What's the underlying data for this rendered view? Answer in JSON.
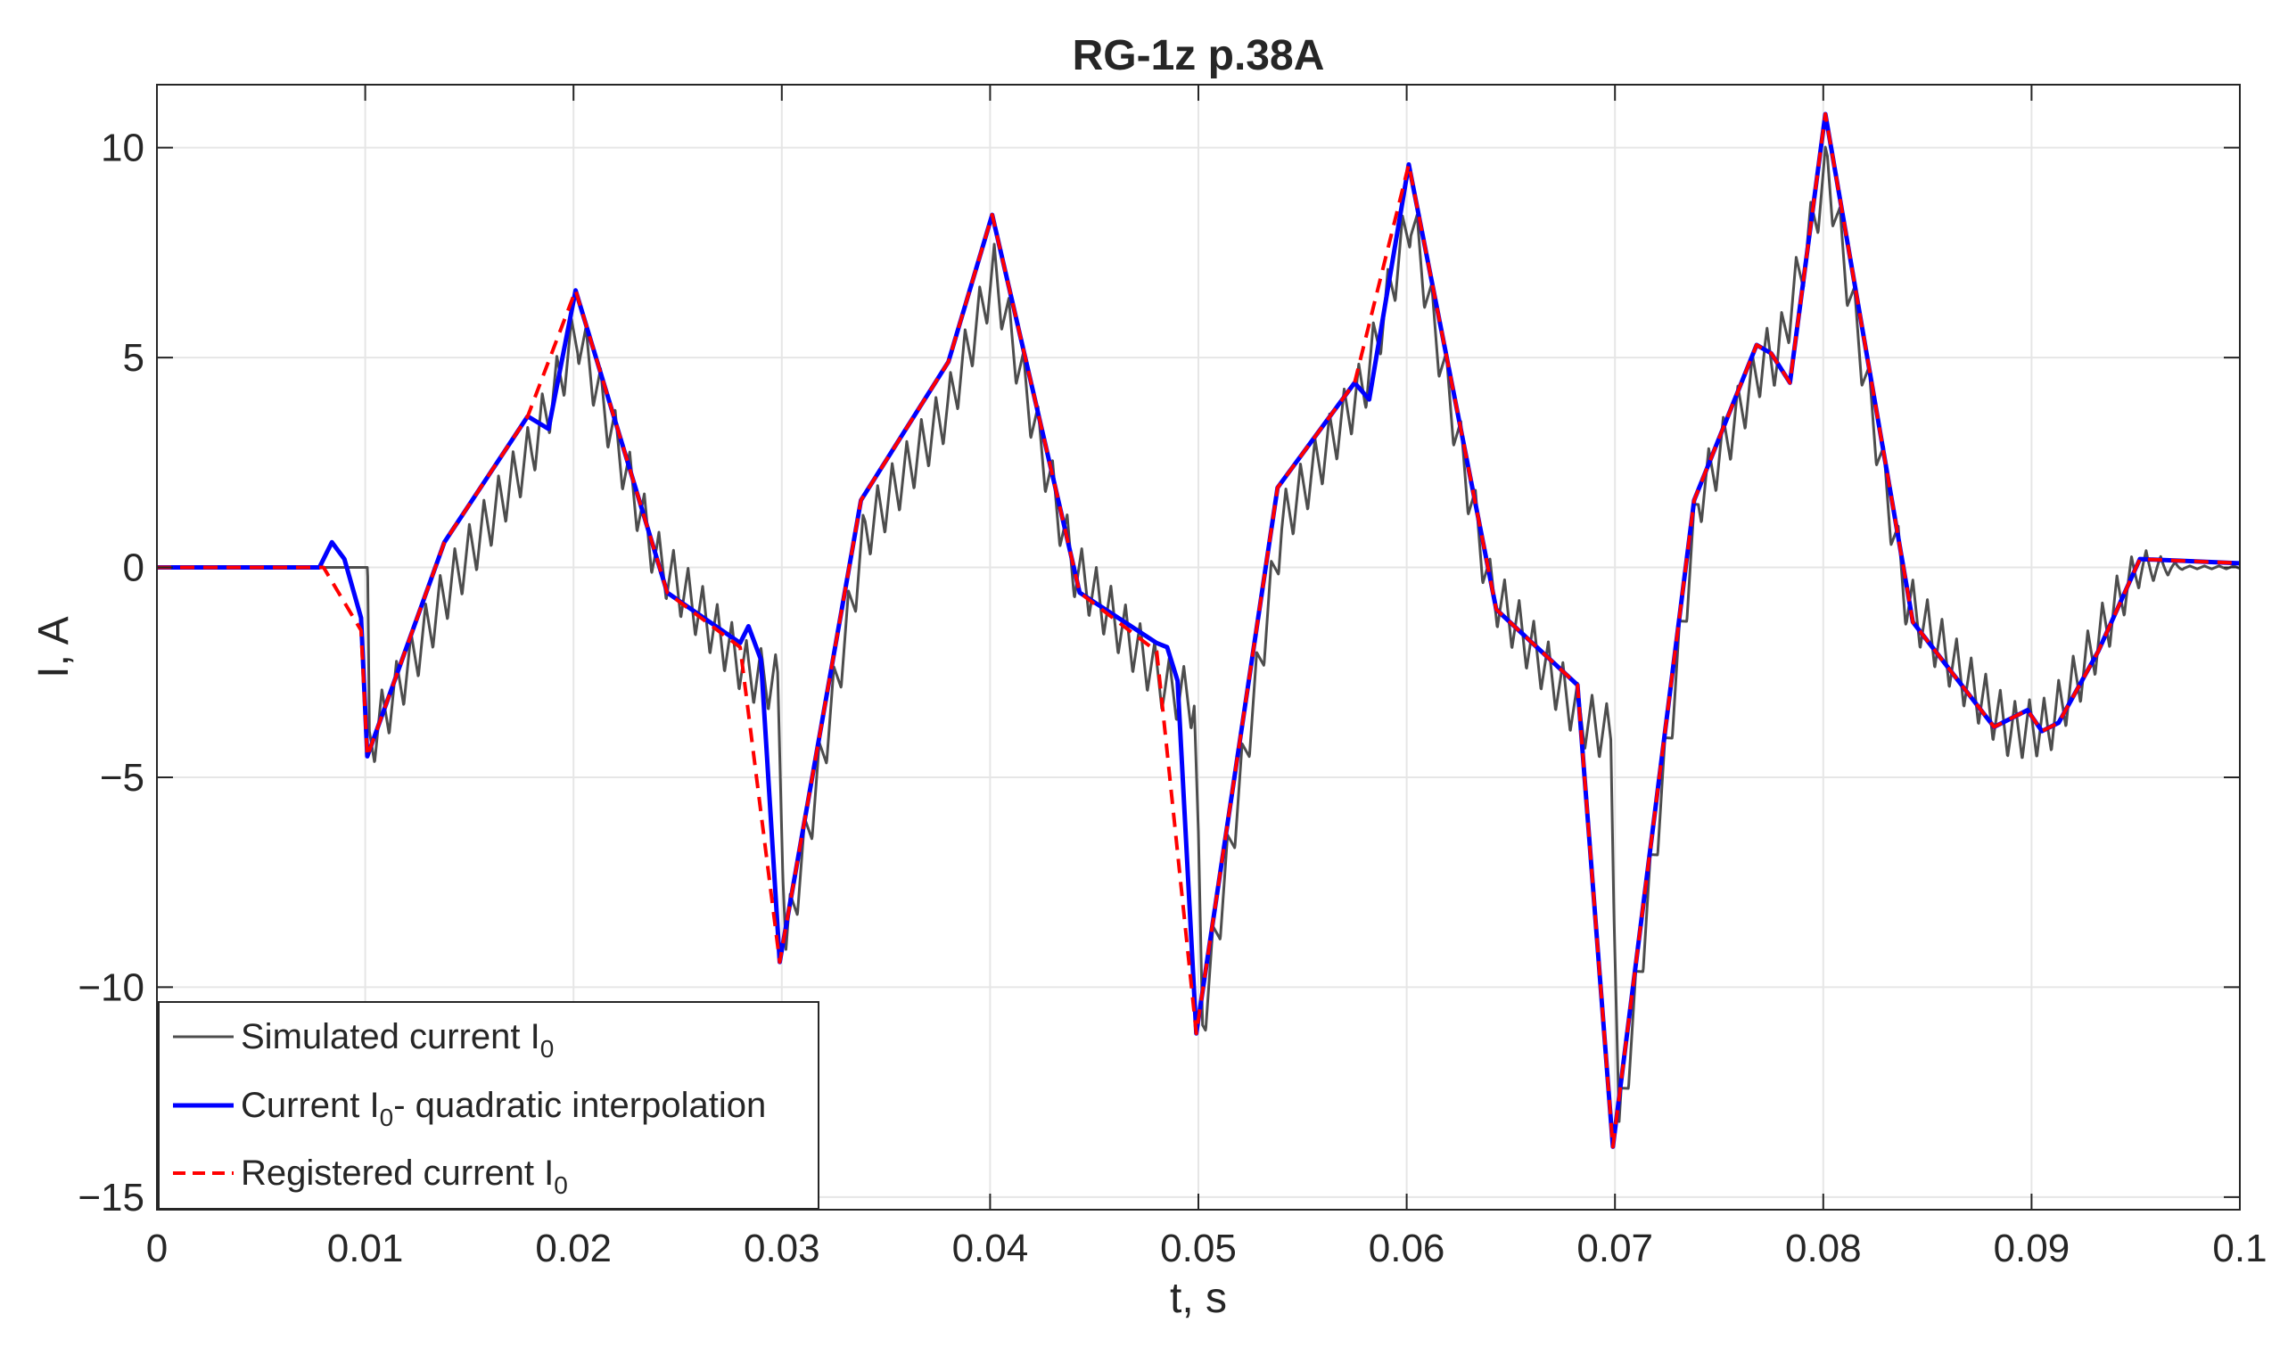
{
  "chart_data": {
    "type": "line",
    "title": "RG-1z p.38A",
    "xlabel": "t, s",
    "ylabel": "I, A",
    "xlim": [
      0,
      0.1
    ],
    "ylim": [
      -15.3,
      11.5
    ],
    "grid": true,
    "x_ticks": [
      0,
      0.01,
      0.02,
      0.03,
      0.04,
      0.05,
      0.06,
      0.07,
      0.08,
      0.09,
      0.1
    ],
    "x_tick_labels": [
      "0",
      "0.01",
      "0.02",
      "0.03",
      "0.04",
      "0.05",
      "0.06",
      "0.07",
      "0.08",
      "0.09",
      "0.1"
    ],
    "y_ticks": [
      -15,
      -10,
      -5,
      0,
      5,
      10
    ],
    "y_tick_labels": [
      "−15",
      "−10",
      "−5",
      "0",
      "5",
      "10"
    ],
    "legend_position": "bottom-left",
    "series": [
      {
        "name": "Simulated current I0",
        "legend_text": "Simulated current I",
        "legend_sub": "0",
        "color": "#4d4d4d",
        "style": "solid",
        "ripple_amplitude": 1.4,
        "ripple_period": 0.0007,
        "x": [
          0,
          0.0101,
          0.0102,
          0.014,
          0.018,
          0.0202,
          0.024,
          0.0284,
          0.0298,
          0.0302,
          0.034,
          0.038,
          0.0402,
          0.044,
          0.0484,
          0.0498,
          0.0502,
          0.054,
          0.058,
          0.0602,
          0.064,
          0.0684,
          0.0698,
          0.0702,
          0.074,
          0.0772,
          0.0778,
          0.0802,
          0.084,
          0.087,
          0.089,
          0.0908,
          0.0925,
          0.0945,
          0.0952,
          0.1
        ],
        "y": [
          0,
          0,
          -4.2,
          -0.5,
          2.8,
          5.6,
          0.2,
          -2.5,
          -2.8,
          -9.0,
          0.8,
          3.8,
          7.0,
          0.0,
          -2.8,
          -3.2,
          -10.8,
          1.0,
          4.4,
          8.4,
          -0.5,
          -3.6,
          -4.0,
          -13.5,
          1.6,
          5.0,
          5.0,
          9.5,
          -0.8,
          -2.8,
          -3.9,
          -3.8,
          -2.4,
          -0.5,
          0,
          0
        ]
      },
      {
        "name": "Current I0- quadratic interpolation",
        "legend_text": "Current  I",
        "legend_sub": "0",
        "legend_text_after": "- quadratic interpolation",
        "color": "#0000ff",
        "style": "solid",
        "x": [
          0,
          0.0078,
          0.0084,
          0.009,
          0.0098,
          0.0101,
          0.0138,
          0.0178,
          0.0188,
          0.0201,
          0.0245,
          0.028,
          0.0284,
          0.029,
          0.0299,
          0.0338,
          0.038,
          0.0401,
          0.0443,
          0.048,
          0.0485,
          0.049,
          0.0499,
          0.0538,
          0.0575,
          0.0582,
          0.0601,
          0.0643,
          0.0682,
          0.0699,
          0.0738,
          0.0768,
          0.0775,
          0.0784,
          0.0801,
          0.0843,
          0.0882,
          0.0898,
          0.0905,
          0.0913,
          0.0932,
          0.0952,
          0.1
        ],
        "y": [
          0,
          0,
          0.6,
          0.2,
          -1.2,
          -4.5,
          0.6,
          3.6,
          3.3,
          6.6,
          -0.6,
          -1.8,
          -1.4,
          -2.2,
          -9.4,
          1.6,
          4.9,
          8.4,
          -0.6,
          -1.8,
          -1.9,
          -2.7,
          -11.1,
          1.9,
          4.4,
          4.0,
          9.6,
          -1.0,
          -2.8,
          -13.8,
          1.6,
          5.3,
          5.1,
          4.4,
          10.8,
          -1.3,
          -3.8,
          -3.4,
          -3.9,
          -3.7,
          -2.0,
          0.2,
          0.1
        ]
      },
      {
        "name": "Registered current I0",
        "legend_text": "Registered current I",
        "legend_sub": "0",
        "color": "#ff0000",
        "style": "dashed",
        "x": [
          0,
          0.008,
          0.0098,
          0.0101,
          0.0138,
          0.0178,
          0.0201,
          0.0245,
          0.028,
          0.0299,
          0.0338,
          0.038,
          0.0401,
          0.0443,
          0.048,
          0.0499,
          0.0538,
          0.0575,
          0.0601,
          0.0643,
          0.0682,
          0.0699,
          0.0738,
          0.0768,
          0.0775,
          0.0784,
          0.0801,
          0.0843,
          0.0882,
          0.0898,
          0.0905,
          0.0913,
          0.0932,
          0.0952,
          0.1
        ],
        "y": [
          0,
          0,
          -1.5,
          -4.5,
          0.6,
          3.6,
          6.6,
          -0.6,
          -1.9,
          -9.4,
          1.6,
          4.9,
          8.4,
          -0.6,
          -2.0,
          -11.1,
          1.9,
          4.4,
          9.6,
          -1.0,
          -2.8,
          -13.8,
          1.6,
          5.3,
          5.1,
          4.4,
          10.8,
          -1.3,
          -3.8,
          -3.4,
          -3.9,
          -3.7,
          -2.0,
          0.2,
          0.1
        ]
      }
    ]
  }
}
